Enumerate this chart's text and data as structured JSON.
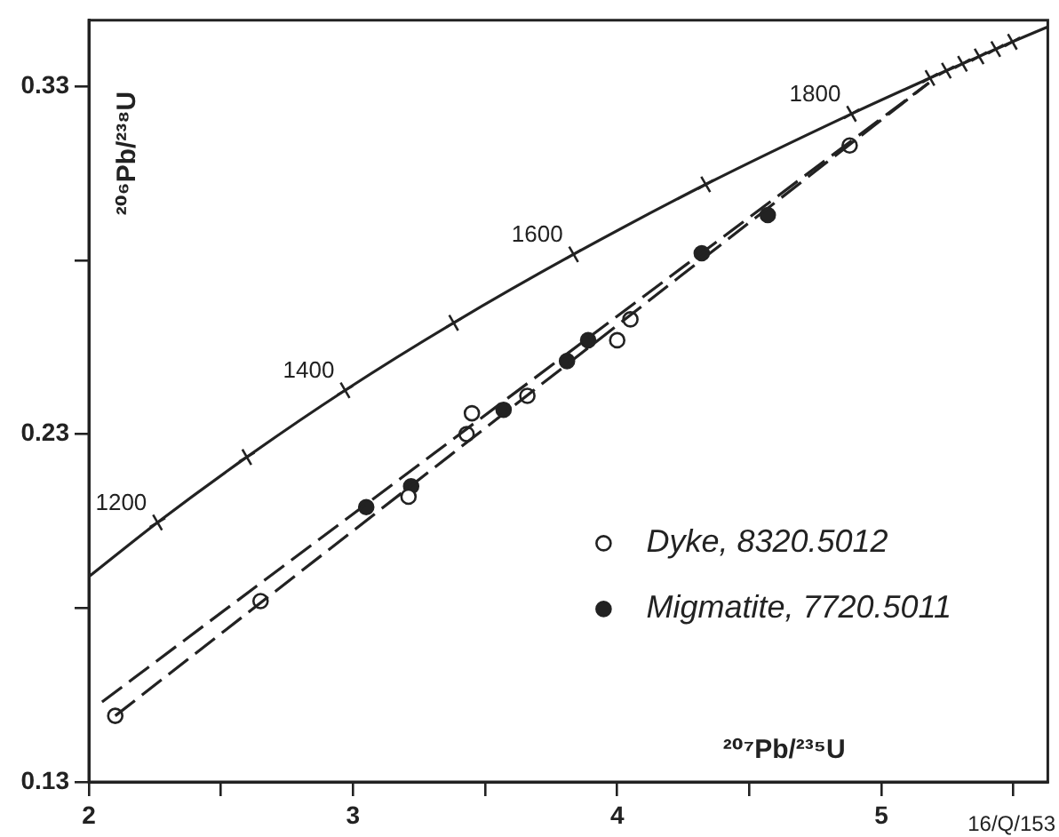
{
  "chart_data": {
    "type": "scatter",
    "xlabel": "²⁰⁷Pb/²³⁵U",
    "ylabel": "²⁰⁶Pb/²³⁸U",
    "xlim": [
      2,
      5.63
    ],
    "ylim": [
      0.13,
      0.349
    ],
    "xticks": [
      2,
      {
        "value": 2.5,
        "label": null
      },
      3,
      {
        "value": 3.5,
        "label": null
      },
      4,
      {
        "value": 4.5,
        "label": null
      },
      5,
      {
        "value": 5.5,
        "label": null
      }
    ],
    "yticks": [
      0.13,
      {
        "value": 0.18,
        "label": null
      },
      0.23,
      {
        "value": 0.28,
        "label": null
      },
      0.33
    ],
    "grid": false,
    "legend": "right",
    "series": [
      {
        "type": "line",
        "color": "#222222",
        "marker": "none",
        "line_style": "solid",
        "x": [
          2,
          2.26,
          2.598,
          2.97,
          3.381,
          3.835,
          4.335,
          4.887,
          5.184,
          5.246,
          5.307,
          5.37,
          5.433,
          5.496,
          5.63
        ],
        "values": [
          0.189,
          0.2046,
          0.2234,
          0.2426,
          0.262,
          0.2817,
          0.3018,
          0.3221,
          0.3324,
          0.3345,
          0.3365,
          0.3386,
          0.3407,
          0.3428,
          0.3471
        ]
      },
      {
        "color": "#222222",
        "marker": "cross",
        "x": [
          2.26,
          2.598,
          2.97,
          3.381,
          3.835,
          4.335,
          4.887,
          5.184,
          5.246,
          5.307,
          5.37,
          5.433,
          5.496
        ],
        "values": [
          0.2046,
          0.2234,
          0.2426,
          0.262,
          0.2817,
          0.3018,
          0.3221,
          0.3324,
          0.3345,
          0.3365,
          0.3386,
          0.3407,
          0.3428
        ]
      },
      {
        "type": "line",
        "color": "#222222",
        "marker": "none",
        "line_style": "dashed",
        "x": [
          2.1,
          5.18
        ],
        "values": [
          0.149,
          0.331
        ]
      },
      {
        "type": "line",
        "color": "#222222",
        "marker": "none",
        "line_style": "dashed",
        "x": [
          2.05,
          5.18
        ],
        "values": [
          0.153,
          0.331
        ]
      },
      {
        "name": "Dyke, 8320.5012",
        "color": "#ffffff",
        "marker": "circle",
        "x": [
          2.1,
          2.65,
          3.21,
          3.43,
          3.45,
          3.66,
          4.0,
          4.05,
          4.88
        ],
        "values": [
          0.149,
          0.182,
          0.212,
          0.23,
          0.236,
          0.241,
          0.257,
          0.263,
          0.313
        ]
      },
      {
        "name": "Migmatite, 7720.5011",
        "color": "#222222",
        "marker": "circle",
        "x": [
          3.05,
          3.22,
          3.57,
          3.81,
          3.89,
          4.32,
          4.57
        ],
        "values": [
          0.209,
          0.215,
          0.237,
          0.251,
          0.257,
          0.282,
          0.293
        ]
      }
    ],
    "annotations": [
      {
        "text": "1200",
        "x": 2.26,
        "y": 0.2046
      },
      {
        "text": "1400",
        "x": 2.97,
        "y": 0.2426
      },
      {
        "text": "1600",
        "x": 3.835,
        "y": 0.2817
      },
      {
        "text": "1800",
        "x": 4.887,
        "y": 0.3221
      },
      "16/Q/153"
    ]
  }
}
